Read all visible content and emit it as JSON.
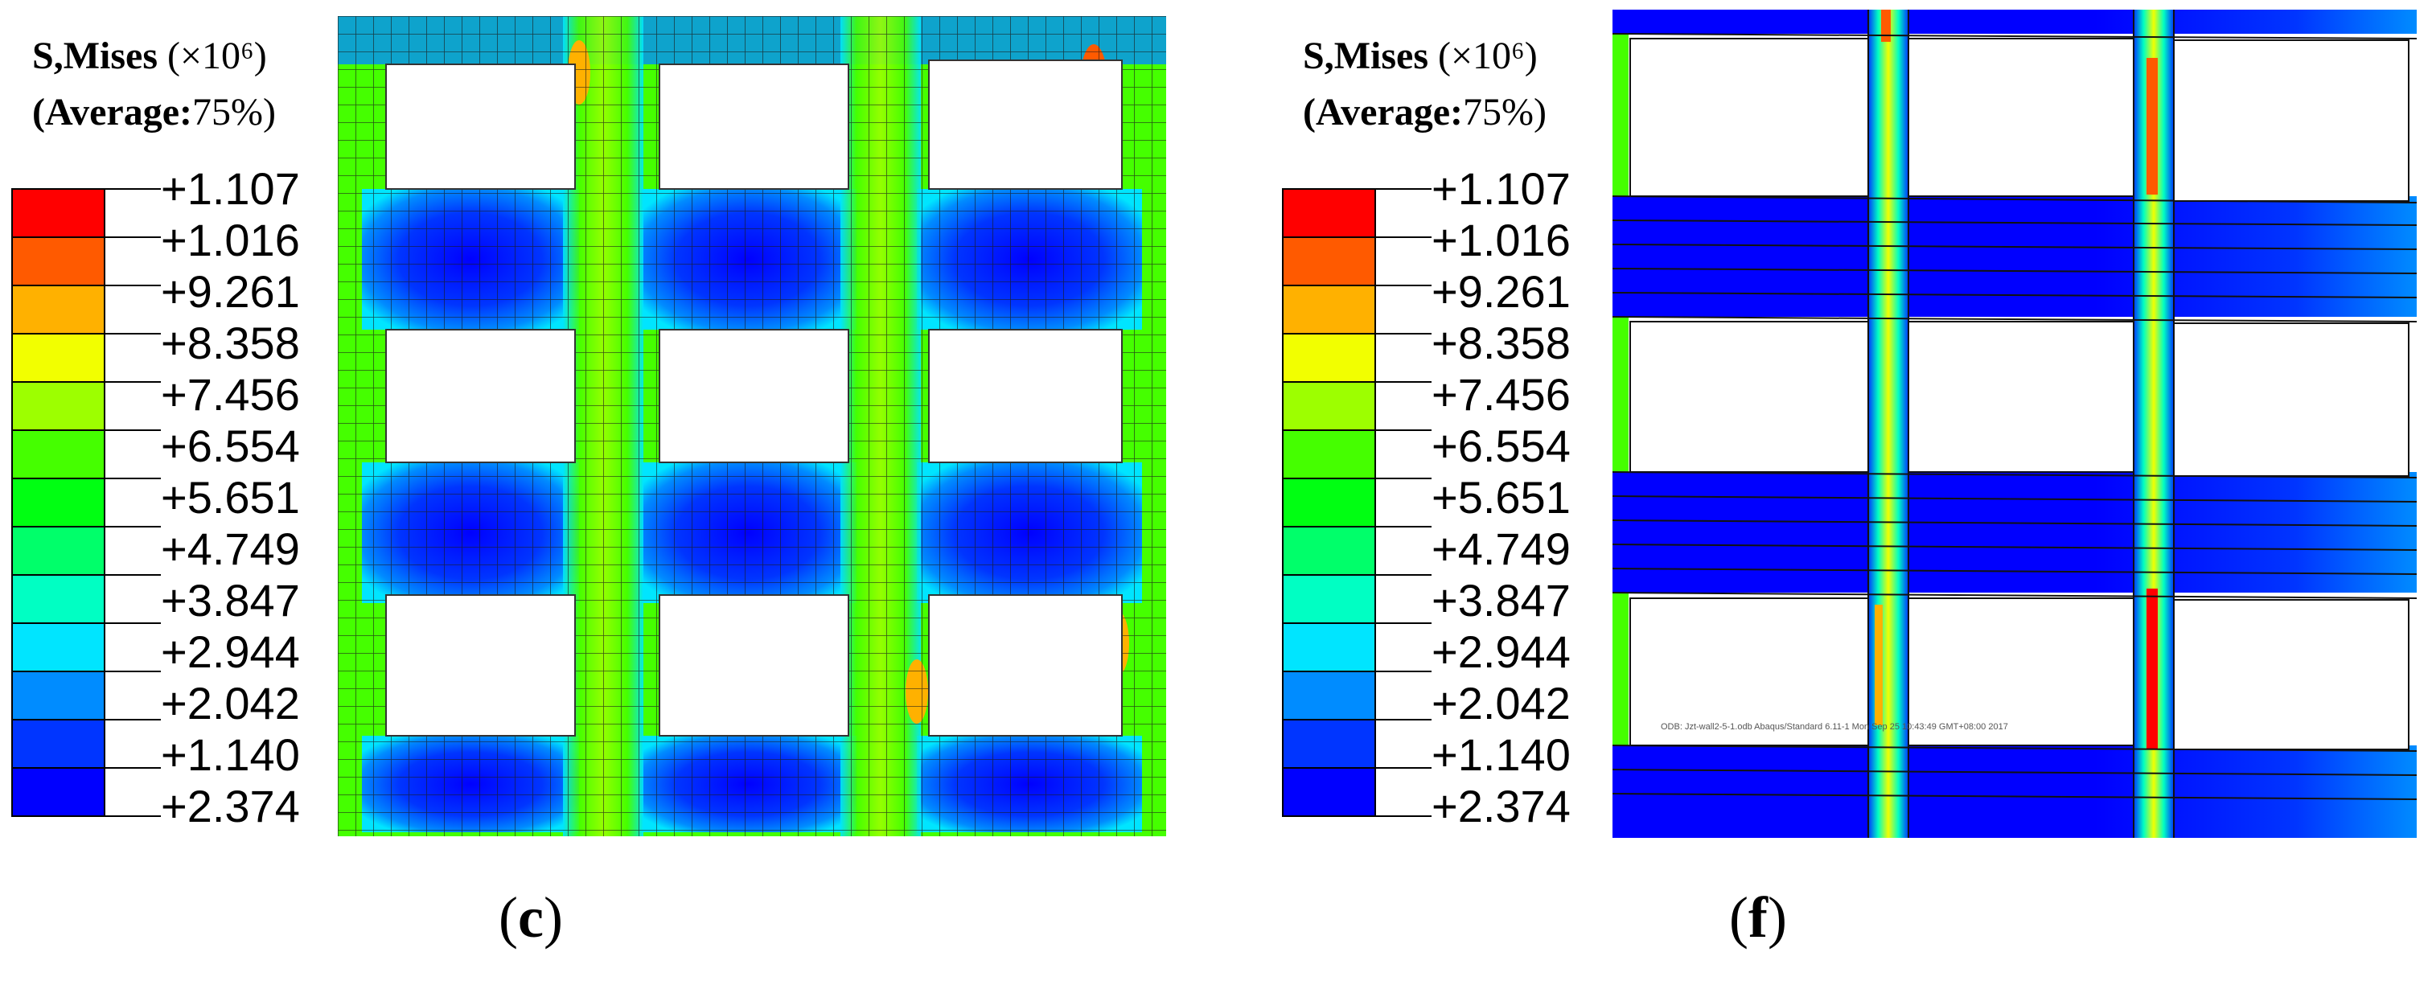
{
  "panels": [
    {
      "id": "c",
      "legend": {
        "title_prefix": "S,Mises",
        "title_scale": "(×10⁶)",
        "subtitle_prefix": "(Average:",
        "subtitle_value": "75%)",
        "values": [
          "+1.107",
          "+1.016",
          "+9.261",
          "+8.358",
          "+7.456",
          "+6.554",
          "+5.651",
          "+4.749",
          "+3.847",
          "+2.944",
          "+2.042",
          "+1.140",
          "+2.374"
        ]
      },
      "caption": {
        "open": "(",
        "letter": "c",
        "close": ")"
      }
    },
    {
      "id": "f",
      "legend": {
        "title_prefix": "S,Mises",
        "title_scale": "(×10⁶)",
        "subtitle_prefix": "(Average:",
        "subtitle_value": "75%)",
        "values": [
          "+1.107",
          "+1.016",
          "+9.261",
          "+8.358",
          "+7.456",
          "+6.554",
          "+5.651",
          "+4.749",
          "+3.847",
          "+2.944",
          "+2.042",
          "+1.140",
          "+2.374"
        ]
      },
      "caption": {
        "open": "(",
        "letter": "f",
        "close": ")"
      },
      "watermark": "ODB: Jzt-wall2-5-1.odb   Abaqus/Standard 6.11-1   Mon Sep 25 10:43:49 GMT+08:00 2017"
    }
  ],
  "colors": {
    "contour_scale": [
      "#ff0000",
      "#ff5a00",
      "#ffb100",
      "#f2ff00",
      "#9dff00",
      "#45ff00",
      "#00ff12",
      "#00ff6a",
      "#00ffc3",
      "#00e5ff",
      "#008cff",
      "#0035ff",
      "#0000ff"
    ]
  }
}
